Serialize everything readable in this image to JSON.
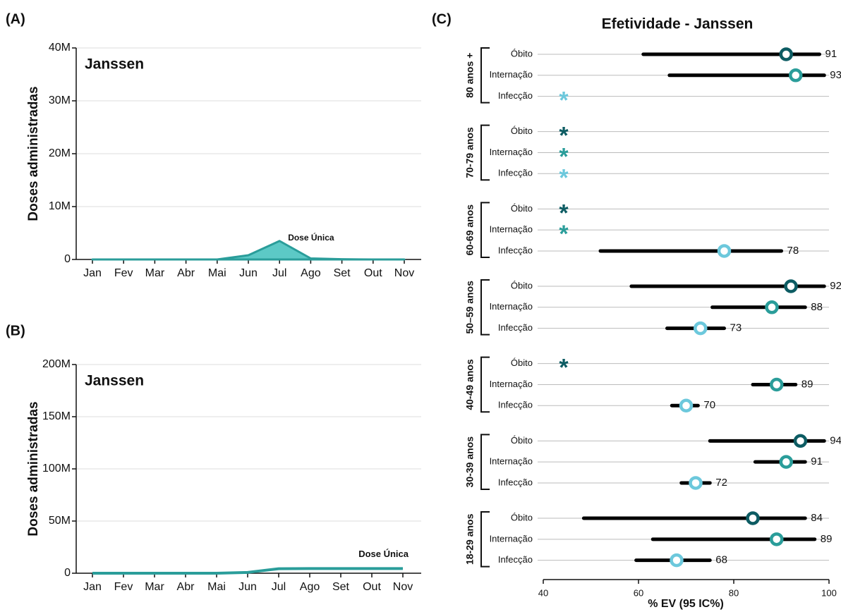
{
  "chart_data": [
    {
      "type": "area",
      "panel": "(A)",
      "title": "Janssen",
      "ylabel": "Doses administradas",
      "categories": [
        "Jan",
        "Fev",
        "Mar",
        "Abr",
        "Mai",
        "Jun",
        "Jul",
        "Ago",
        "Set",
        "Out",
        "Nov"
      ],
      "series": [
        {
          "name": "Dose Única",
          "color": "#2a9d9a",
          "fill": "#5cc9c6",
          "values": [
            0,
            0,
            0,
            0,
            0,
            800000,
            3500000,
            200000,
            50000,
            0,
            0
          ]
        }
      ],
      "ylim": [
        0,
        40000000
      ],
      "yticks": [
        0,
        {
          "value": 10000000,
          "label": "10M"
        },
        {
          "value": 20000000,
          "label": "20M"
        },
        {
          "value": 30000000,
          "label": "30M"
        },
        {
          "value": 40000000,
          "label": "40M"
        }
      ],
      "grid": true
    },
    {
      "type": "line",
      "panel": "(B)",
      "title": "Janssen",
      "ylabel": "Doses administradas",
      "categories": [
        "Jan",
        "Fev",
        "Mar",
        "Abr",
        "Mai",
        "Jun",
        "Jul",
        "Ago",
        "Set",
        "Out",
        "Nov"
      ],
      "series": [
        {
          "name": "Dose Única",
          "color": "#2a9d9a",
          "values": [
            0,
            0,
            0,
            0,
            0,
            800000,
            4300000,
            4500000,
            4500000,
            4500000,
            4500000
          ]
        }
      ],
      "ylim": [
        0,
        200000000
      ],
      "yticks": [
        0,
        {
          "value": 50000000,
          "label": "50M"
        },
        {
          "value": 100000000,
          "label": "100M"
        },
        {
          "value": 150000000,
          "label": "150M"
        },
        {
          "value": 200000000,
          "label": "200M"
        }
      ],
      "grid": true
    },
    {
      "type": "forest",
      "panel": "(C)",
      "title": "Efetividade - Janssen",
      "xlabel": "% EV (95 IC%)",
      "xlim": [
        40,
        100
      ],
      "xticks": [
        40,
        60,
        80,
        100
      ],
      "outcomes": [
        "Óbito",
        "Internação",
        "Infecção"
      ],
      "outcome_colors": [
        "#0d5c63",
        "#2a9d9a",
        "#6cc8dc"
      ],
      "missing_symbol": "*",
      "groups": [
        {
          "name": "80 anos +",
          "values": [
            91,
            93,
            null
          ],
          "ci_low": [
            61,
            66.5,
            null
          ],
          "ci_high": [
            98,
            99,
            null
          ]
        },
        {
          "name": "70-79 anos",
          "values": [
            null,
            null,
            null
          ],
          "ci_low": [
            null,
            null,
            null
          ],
          "ci_high": [
            null,
            null,
            null
          ]
        },
        {
          "name": "60-69 anos",
          "values": [
            null,
            null,
            78
          ],
          "ci_low": [
            null,
            null,
            52
          ],
          "ci_high": [
            null,
            null,
            90
          ]
        },
        {
          "name": "50–59 anos",
          "values": [
            92,
            88,
            73
          ],
          "ci_low": [
            58.5,
            75.5,
            66
          ],
          "ci_high": [
            99,
            95,
            78
          ]
        },
        {
          "name": "40-49 anos",
          "values": [
            null,
            89,
            70
          ],
          "ci_low": [
            null,
            84,
            67
          ],
          "ci_high": [
            null,
            93,
            72.5
          ]
        },
        {
          "name": "30-39 anos",
          "values": [
            94,
            91,
            72
          ],
          "ci_low": [
            75,
            84.5,
            69
          ],
          "ci_high": [
            99,
            95,
            75
          ]
        },
        {
          "name": "18-29 anos",
          "values": [
            84,
            89,
            68
          ],
          "ci_low": [
            48.5,
            63,
            59.5
          ],
          "ci_high": [
            95,
            97,
            75
          ]
        }
      ]
    }
  ]
}
